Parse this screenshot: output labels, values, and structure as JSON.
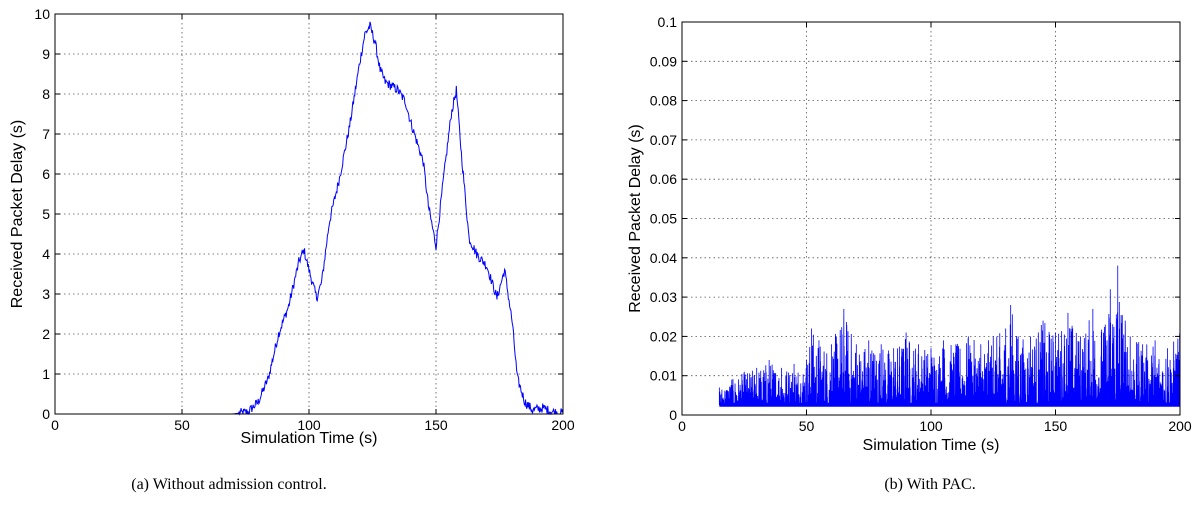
{
  "chart_data": [
    {
      "type": "line",
      "caption": "(a) Without admission control.",
      "xlabel": "Simulation Time (s)",
      "ylabel": "Received Packet Delay (s)",
      "xlim": [
        0,
        200
      ],
      "ylim": [
        0,
        10
      ],
      "xticks": [
        "0",
        "50",
        "100",
        "150",
        "200"
      ],
      "yticks": [
        "0",
        "1",
        "2",
        "3",
        "4",
        "5",
        "6",
        "7",
        "8",
        "9",
        "10"
      ],
      "grid": true,
      "series": [
        {
          "color": "#0000ff",
          "x": [
            15,
            40,
            70,
            76,
            80,
            84,
            88,
            92,
            96,
            98,
            100,
            103,
            105,
            108,
            112,
            116,
            120,
            122,
            124,
            126,
            128,
            130,
            135,
            138,
            140,
            142,
            145,
            147,
            150,
            153,
            156,
            158,
            160,
            163,
            166,
            170,
            174,
            177,
            180,
            182,
            185,
            188,
            192,
            196,
            200
          ],
          "y": [
            0,
            0,
            0,
            0.05,
            0.3,
            0.9,
            2.0,
            2.7,
            3.8,
            4.1,
            3.6,
            2.9,
            3.3,
            4.8,
            5.9,
            7.2,
            8.8,
            9.5,
            9.7,
            9.3,
            8.6,
            8.3,
            8.1,
            7.8,
            7.3,
            6.9,
            6.3,
            5.2,
            4.2,
            5.9,
            7.5,
            8.1,
            6.5,
            4.4,
            4.0,
            3.7,
            2.9,
            3.6,
            2.3,
            0.9,
            0.3,
            0.1,
            0.15,
            0.05,
            0.02
          ]
        }
      ]
    },
    {
      "type": "line",
      "caption": "(b) With PAC.",
      "xlabel": "Simulation Time (s)",
      "ylabel": "Received Packet Delay (s)",
      "xlim": [
        0,
        200
      ],
      "ylim": [
        0,
        0.1
      ],
      "xticks": [
        "0",
        "50",
        "100",
        "150",
        "200"
      ],
      "yticks": [
        "0",
        "0.01",
        "0.02",
        "0.03",
        "0.04",
        "0.05",
        "0.06",
        "0.07",
        "0.08",
        "0.09",
        "0.1"
      ],
      "grid": true,
      "series": [
        {
          "color": "#0000ff",
          "x": [
            15,
            20,
            25,
            30,
            35,
            40,
            45,
            50,
            52,
            55,
            60,
            65,
            70,
            75,
            80,
            85,
            90,
            95,
            100,
            105,
            110,
            115,
            120,
            125,
            130,
            132,
            135,
            140,
            145,
            150,
            155,
            160,
            165,
            170,
            172,
            175,
            178,
            180,
            185,
            190,
            195,
            200
          ],
          "ymin": 0.0025,
          "ymax": [
            0.007,
            0.009,
            0.011,
            0.012,
            0.014,
            0.012,
            0.013,
            0.014,
            0.022,
            0.019,
            0.018,
            0.027,
            0.018,
            0.019,
            0.018,
            0.017,
            0.021,
            0.018,
            0.017,
            0.019,
            0.018,
            0.02,
            0.018,
            0.02,
            0.022,
            0.028,
            0.02,
            0.02,
            0.024,
            0.021,
            0.026,
            0.02,
            0.027,
            0.023,
            0.032,
            0.038,
            0.024,
            0.02,
            0.018,
            0.019,
            0.017,
            0.022
          ]
        }
      ]
    }
  ]
}
